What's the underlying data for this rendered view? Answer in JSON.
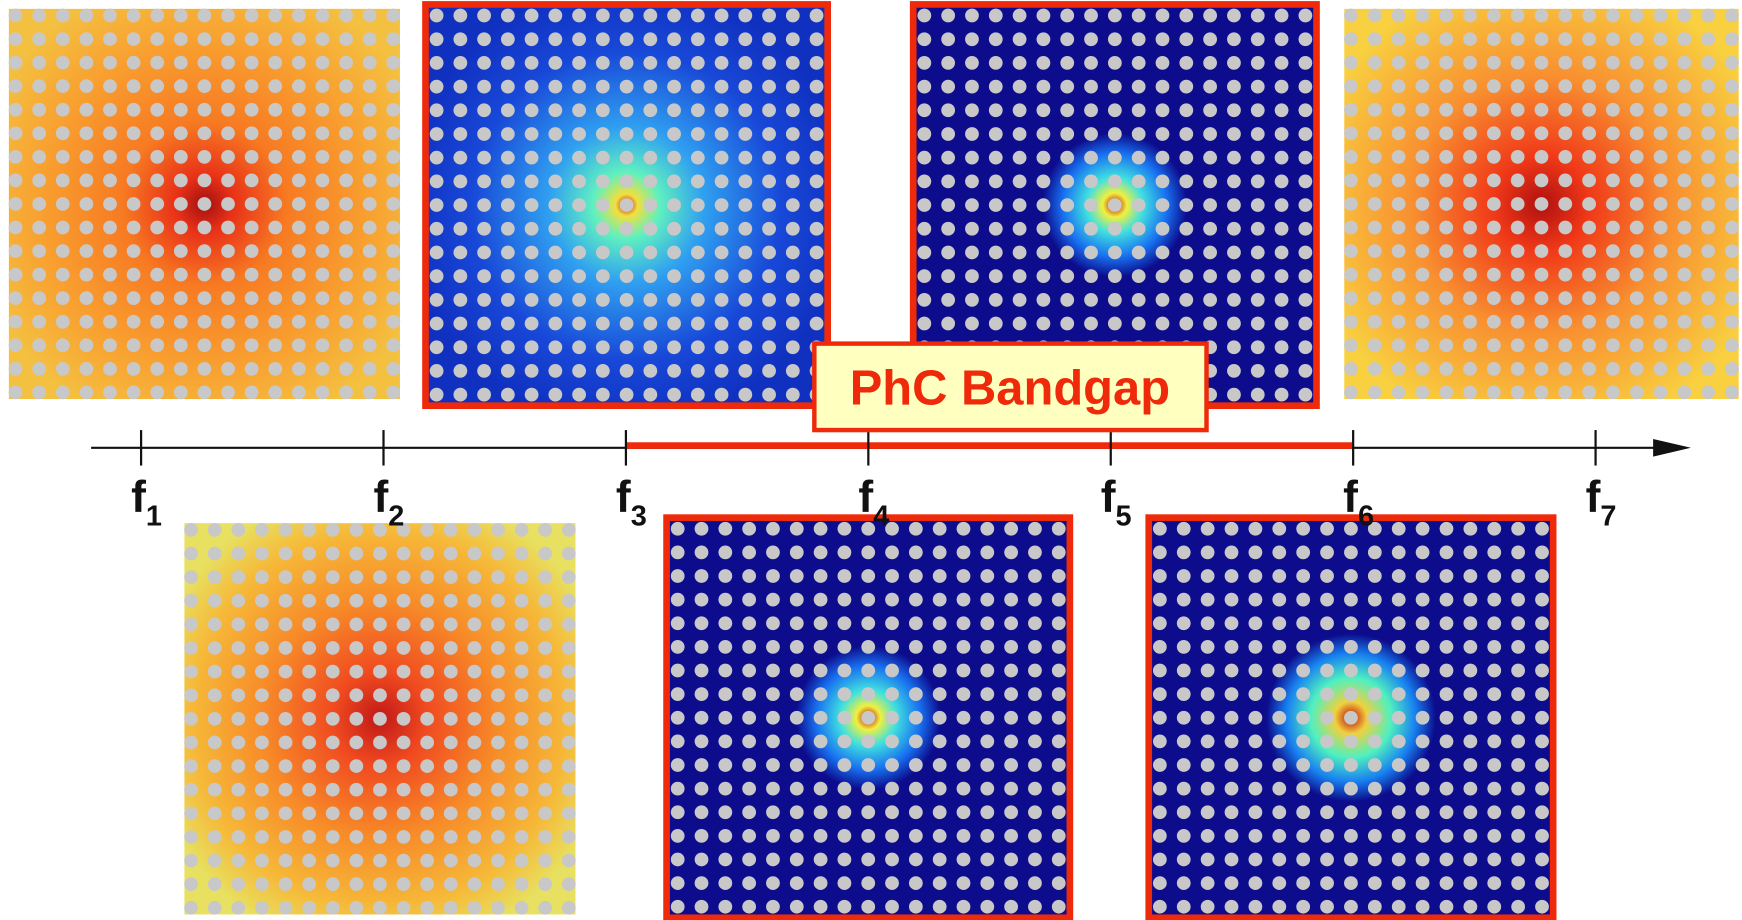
{
  "bandgap_label": "PhC Bandgap",
  "axis": {
    "ticks": [
      {
        "symbol": "f",
        "subscript": "1"
      },
      {
        "symbol": "f",
        "subscript": "2"
      },
      {
        "symbol": "f",
        "subscript": "3"
      },
      {
        "symbol": "f",
        "subscript": "4"
      },
      {
        "symbol": "f",
        "subscript": "5"
      },
      {
        "symbol": "f",
        "subscript": "6"
      },
      {
        "symbol": "f",
        "subscript": "7"
      }
    ]
  }
}
